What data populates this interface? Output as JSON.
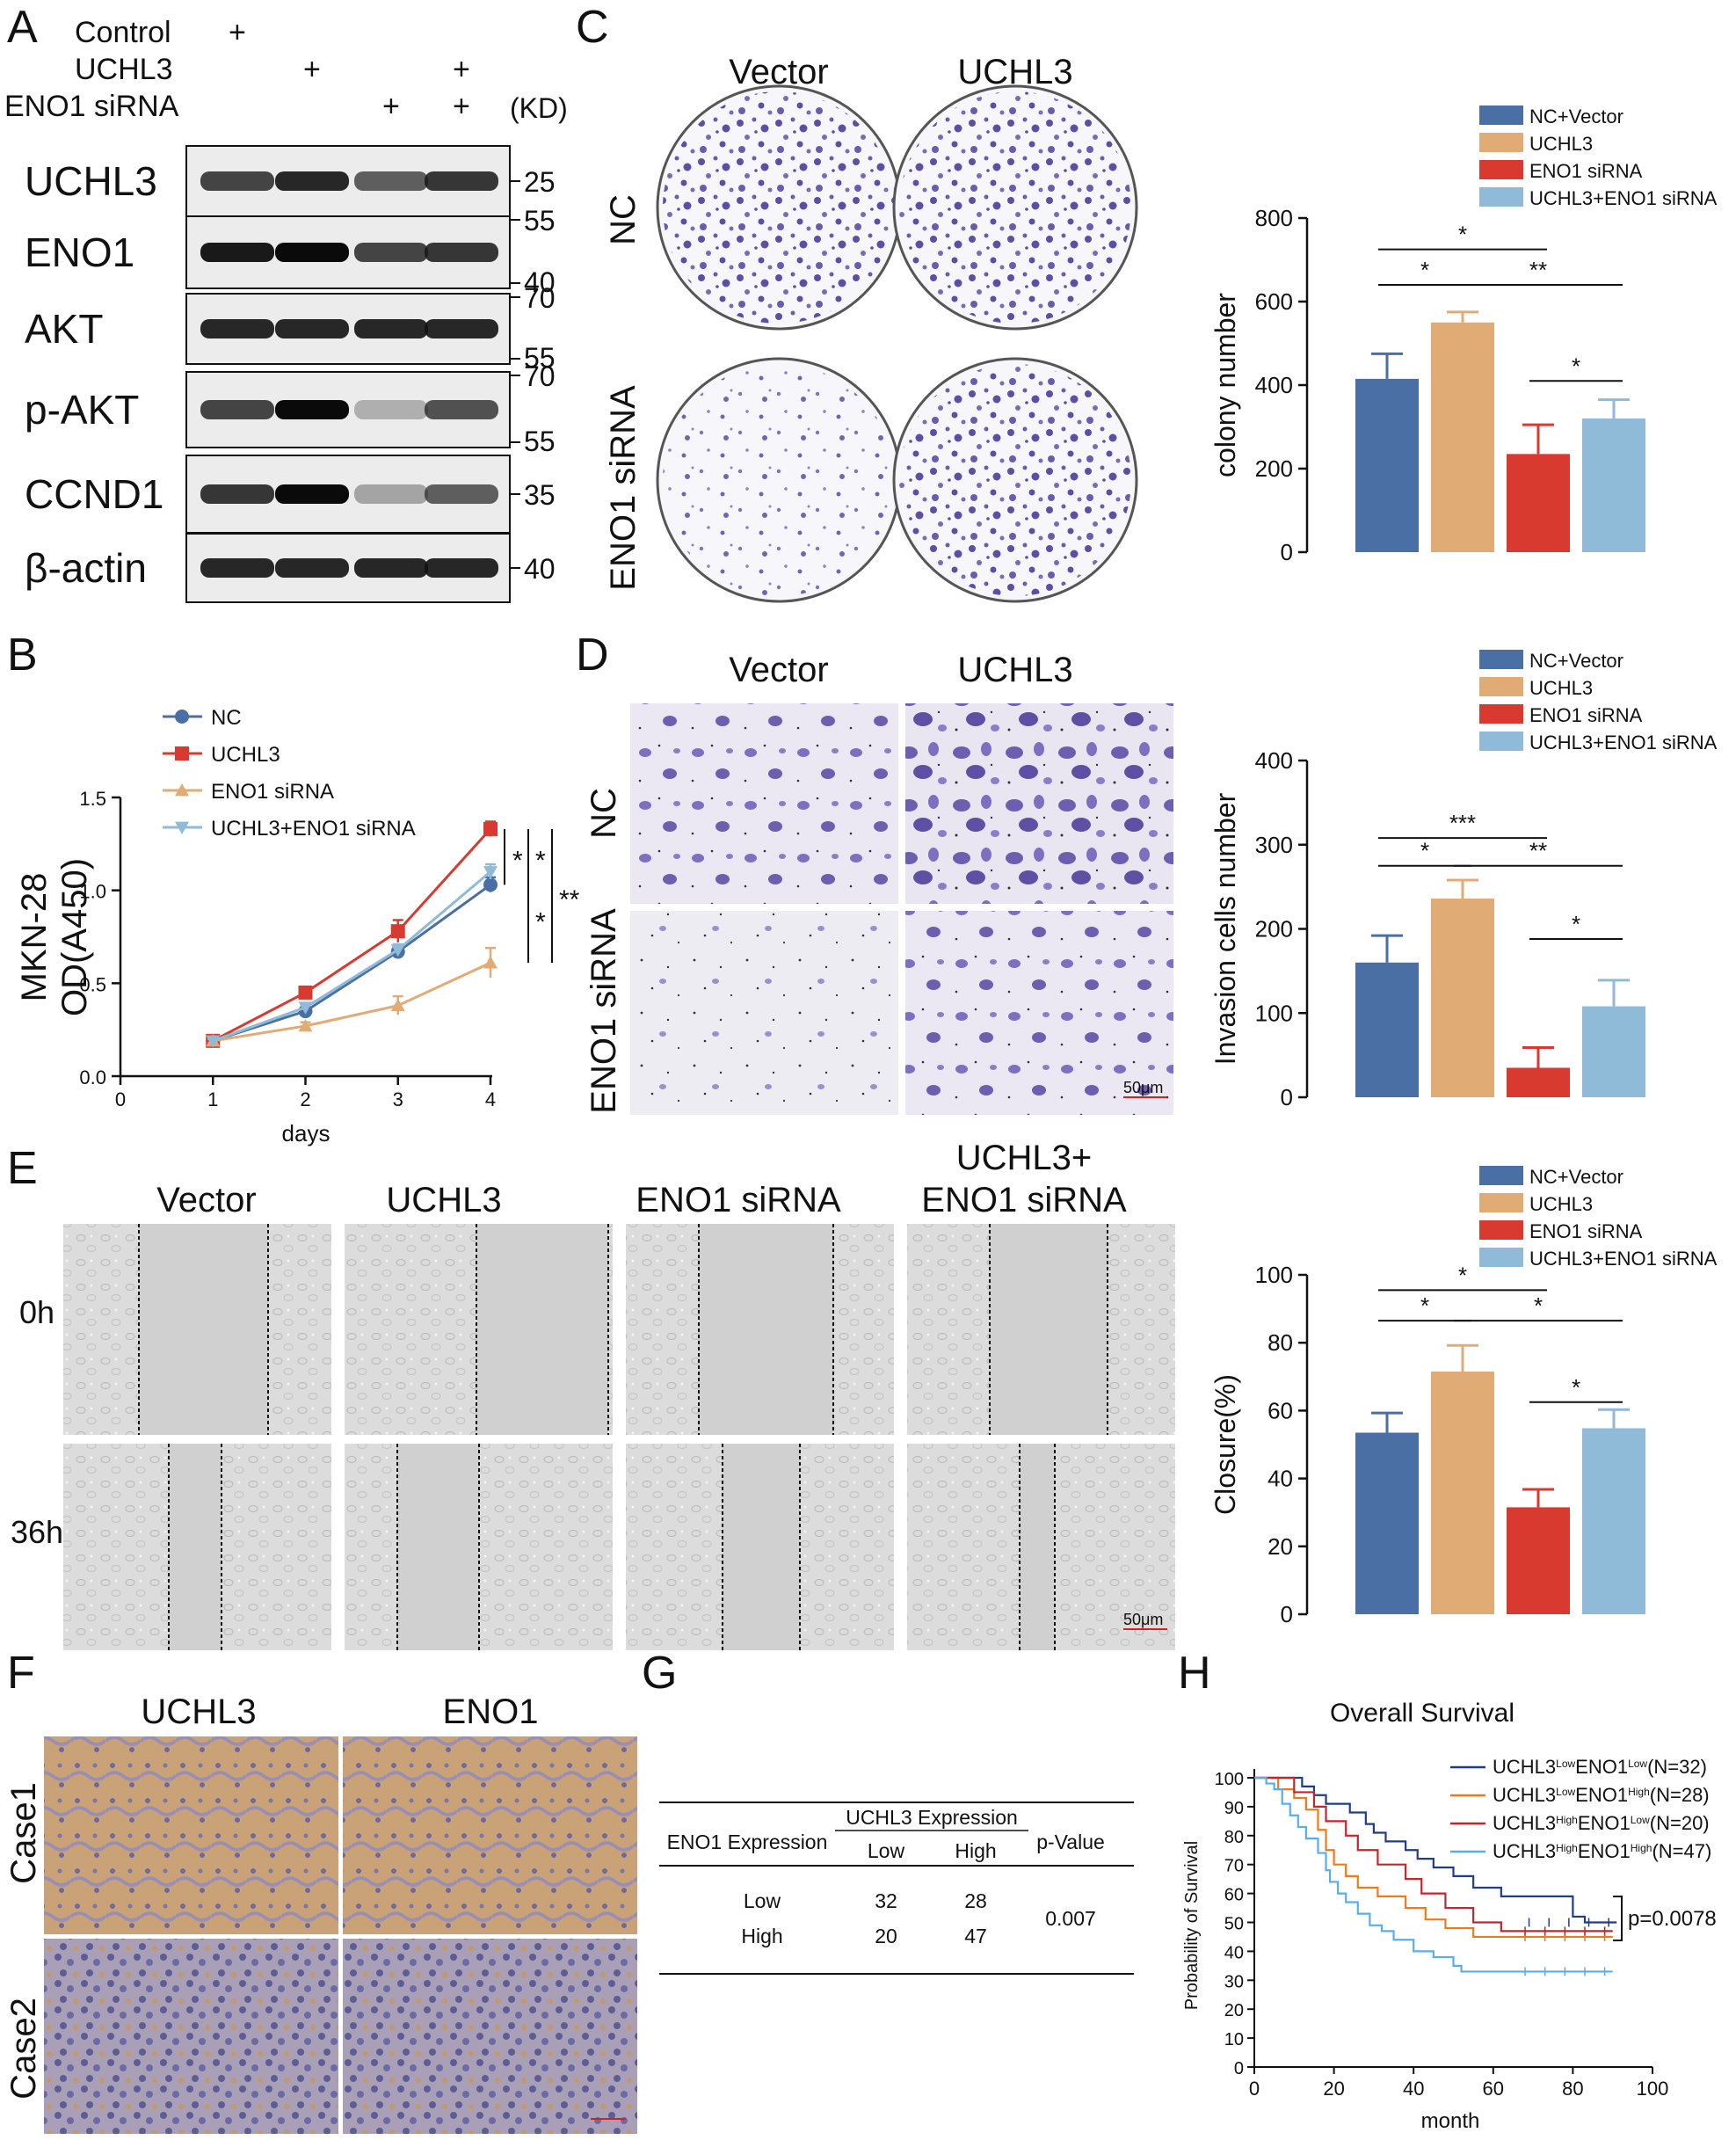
{
  "panels": {
    "a": "A",
    "b": "B",
    "c": "C",
    "d": "D",
    "e": "E",
    "f": "F",
    "g": "G",
    "h": "H"
  },
  "colors": {
    "nc_vector": "#4a6fa5",
    "uchl3": "#e0ab74",
    "eno1_sirna": "#d93a30",
    "uchl3_eno1": "#8fbad8",
    "crystal_violet": "#5a4aa8",
    "ihc_brown": "#b58a5a",
    "ihc_blue": "#7a86b5"
  },
  "blot": {
    "conditions": [
      {
        "label": "Control",
        "marks": [
          "+",
          "",
          "",
          ""
        ]
      },
      {
        "label": "UCHL3",
        "marks": [
          "",
          "+",
          "",
          "+"
        ]
      },
      {
        "label": "ENO1 siRNA",
        "marks": [
          "",
          "",
          "+",
          "+"
        ]
      }
    ],
    "kd_label": "(KD)",
    "rows": [
      {
        "name": "UCHL3",
        "markers": [
          "25"
        ],
        "intensity": [
          0.8,
          0.9,
          0.7,
          0.85
        ]
      },
      {
        "name": "ENO1",
        "markers": [
          "55",
          "40"
        ],
        "intensity": [
          0.95,
          1.0,
          0.8,
          0.85
        ]
      },
      {
        "name": "AKT",
        "markers": [
          "70",
          "55"
        ],
        "intensity": [
          0.9,
          0.9,
          0.9,
          0.9
        ]
      },
      {
        "name": "p-AKT",
        "markers": [
          "70",
          "55"
        ],
        "intensity": [
          0.8,
          1.0,
          0.35,
          0.75
        ]
      },
      {
        "name": "CCND1",
        "markers": [
          "35"
        ],
        "intensity": [
          0.85,
          1.0,
          0.4,
          0.7
        ]
      },
      {
        "name": "β-actin",
        "markers": [
          "40"
        ],
        "intensity": [
          0.9,
          0.9,
          0.9,
          0.9
        ]
      }
    ]
  },
  "panel_b": {
    "legend": [
      "NC",
      "UCHL3",
      "ENO1 siRNA",
      "UCHL3+ENO1 siRNA"
    ],
    "ylabel_line1": "MKN-28",
    "ylabel_line2": "OD(A450)",
    "xlabel": "days",
    "stars": [
      "*",
      "*",
      "*",
      "**"
    ]
  },
  "panel_c": {
    "col_labels": [
      "Vector",
      "UCHL3"
    ],
    "row_labels": [
      "NC",
      "ENO1 siRNA"
    ]
  },
  "panel_d": {
    "col_labels": [
      "Vector",
      "UCHL3"
    ],
    "row_labels": [
      "NC",
      "ENO1 siRNA"
    ],
    "scale": "50μm"
  },
  "panel_e": {
    "col_labels": [
      "Vector",
      "UCHL3",
      "ENO1 siRNA",
      "UCHL3+",
      "ENO1 siRNA"
    ],
    "row_labels": [
      "0h",
      "36h"
    ],
    "scale": "50μm"
  },
  "bar_legend": [
    "NC+Vector",
    "UCHL3",
    "ENO1 siRNA",
    "UCHL3+ENO1 siRNA"
  ],
  "panel_f": {
    "col_labels": [
      "UCHL3",
      "ENO1"
    ],
    "row_labels": [
      "Case1",
      "Case2"
    ]
  },
  "panel_g": {
    "col_header": "UCHL3 Expression",
    "row_header": "ENO1 Expression",
    "pvalue_header": "p-Value",
    "sub_headers": [
      "Low",
      "High"
    ],
    "rows": [
      {
        "label": "Low",
        "values": [
          "32",
          "28"
        ]
      },
      {
        "label": "High",
        "values": [
          "20",
          "47"
        ]
      }
    ],
    "pvalue": "0.007"
  },
  "panel_h": {
    "title": "Overall Survival",
    "ylabel": "Probability of Survival",
    "xlabel": "month",
    "pvalue": "p=0.0078",
    "legend": [
      {
        "a": "UCHL3",
        "as": "Low",
        "b": "ENO1",
        "bs": "Low",
        "n": "(N=32)"
      },
      {
        "a": "UCHL3",
        "as": "Low",
        "b": "ENO1",
        "bs": "High",
        "n": "(N=28)"
      },
      {
        "a": "UCHL3",
        "as": "High",
        "b": "ENO1",
        "bs": "Low",
        "n": "(N=20)"
      },
      {
        "a": "UCHL3",
        "as": "High",
        "b": "ENO1",
        "bs": "High",
        "n": "(N=47)"
      }
    ]
  },
  "chart_data": [
    {
      "id": "B",
      "type": "line",
      "xlabel": "days",
      "ylabel": "MKN-28 OD(A450)",
      "xlim": [
        0,
        4
      ],
      "ylim": [
        0,
        1.5
      ],
      "x_ticks": [
        "0",
        "1",
        "2",
        "3",
        "4"
      ],
      "y_ticks": [
        "0.0",
        "0.5",
        "1.0",
        "1.5"
      ],
      "x": [
        1,
        2,
        3,
        4
      ],
      "series": [
        {
          "name": "NC",
          "values": [
            0.19,
            0.35,
            0.67,
            1.03
          ],
          "err": [
            0.01,
            0.02,
            0.03,
            0.04
          ],
          "color": "#4a6fa5",
          "marker": "circle"
        },
        {
          "name": "UCHL3",
          "values": [
            0.19,
            0.45,
            0.78,
            1.33
          ],
          "err": [
            0.01,
            0.02,
            0.06,
            0.04
          ],
          "color": "#d93a30",
          "marker": "square"
        },
        {
          "name": "ENO1 siRNA",
          "values": [
            0.19,
            0.27,
            0.38,
            0.61
          ],
          "err": [
            0.01,
            0.02,
            0.05,
            0.08
          ],
          "color": "#e0ab74",
          "marker": "triangle"
        },
        {
          "name": "UCHL3+ENO1 siRNA",
          "values": [
            0.19,
            0.37,
            0.68,
            1.1
          ],
          "err": [
            0.01,
            0.02,
            0.03,
            0.04
          ],
          "color": "#8fbad8",
          "marker": "invtriangle"
        }
      ]
    },
    {
      "id": "C",
      "type": "bar",
      "ylabel": "colony number",
      "ylim": [
        0,
        800
      ],
      "y_ticks": [
        "0",
        "200",
        "400",
        "600",
        "800"
      ],
      "categories": [
        "NC+Vector",
        "UCHL3",
        "ENO1 siRNA",
        "UCHL3+ENO1 siRNA"
      ],
      "values": [
        415,
        550,
        235,
        320
      ],
      "err": [
        60,
        25,
        70,
        45
      ],
      "colors": [
        "#4a6fa5",
        "#e0ab74",
        "#d93a30",
        "#8fbad8"
      ],
      "significance": [
        {
          "from": 0,
          "to": 2,
          "label": "*",
          "y": 725
        },
        {
          "from": 0,
          "to": 1,
          "label": "*",
          "y": 640
        },
        {
          "from": 1,
          "to": 3,
          "label": "**",
          "y": 640
        },
        {
          "from": 2,
          "to": 3,
          "label": "*",
          "y": 410
        }
      ]
    },
    {
      "id": "D",
      "type": "bar",
      "ylabel": "Invasion cells number",
      "ylim": [
        0,
        400
      ],
      "y_ticks": [
        "0",
        "100",
        "200",
        "300",
        "400"
      ],
      "categories": [
        "NC+Vector",
        "UCHL3",
        "ENO1 siRNA",
        "UCHL3+ENO1 siRNA"
      ],
      "values": [
        160,
        236,
        35,
        108
      ],
      "err": [
        32,
        22,
        24,
        31
      ],
      "colors": [
        "#4a6fa5",
        "#e0ab74",
        "#d93a30",
        "#8fbad8"
      ],
      "significance": [
        {
          "from": 0,
          "to": 2,
          "label": "***",
          "y": 308
        },
        {
          "from": 0,
          "to": 1,
          "label": "*",
          "y": 275
        },
        {
          "from": 1,
          "to": 3,
          "label": "**",
          "y": 275
        },
        {
          "from": 2,
          "to": 3,
          "label": "*",
          "y": 188
        }
      ]
    },
    {
      "id": "E",
      "type": "bar",
      "ylabel": "Closure(%)",
      "ylim": [
        0,
        100
      ],
      "y_ticks": [
        "0",
        "20",
        "40",
        "60",
        "80",
        "100"
      ],
      "categories": [
        "NC+Vector",
        "UCHL3",
        "ENO1 siRNA",
        "UCHL3+ENO1 siRNA"
      ],
      "values": [
        53.5,
        71.5,
        31.5,
        54.8
      ],
      "err": [
        5.8,
        7.7,
        5.3,
        5.5
      ],
      "colors": [
        "#4a6fa5",
        "#e0ab74",
        "#d93a30",
        "#8fbad8"
      ],
      "significance": [
        {
          "from": 0,
          "to": 2,
          "label": "*",
          "y": 95.5
        },
        {
          "from": 0,
          "to": 1,
          "label": "*",
          "y": 86.5
        },
        {
          "from": 1,
          "to": 3,
          "label": "*",
          "y": 86.5
        },
        {
          "from": 2,
          "to": 3,
          "label": "*",
          "y": 62.5
        }
      ]
    },
    {
      "id": "H",
      "type": "line",
      "subtype": "kaplan-meier",
      "title": "Overall Survival",
      "xlabel": "month",
      "ylabel": "Probability of Survival",
      "xlim": [
        0,
        100
      ],
      "ylim": [
        0,
        100
      ],
      "x_ticks": [
        "0",
        "20",
        "40",
        "60",
        "80",
        "100"
      ],
      "y_ticks": [
        "0",
        "10",
        "20",
        "30",
        "40",
        "50",
        "60",
        "70",
        "80",
        "90",
        "100"
      ],
      "series": [
        {
          "name": "UCHL3 Low ENO1 Low (N=32)",
          "color": "#1f3d8a",
          "steps": [
            [
              0,
              100
            ],
            [
              12,
              97
            ],
            [
              15,
              94
            ],
            [
              18,
              91
            ],
            [
              24,
              88
            ],
            [
              28,
              84
            ],
            [
              30,
              81
            ],
            [
              33,
              78
            ],
            [
              38,
              75
            ],
            [
              41,
              72
            ],
            [
              45,
              69
            ],
            [
              50,
              66
            ],
            [
              55,
              62
            ],
            [
              62,
              59
            ],
            [
              80,
              52
            ],
            [
              83,
              50
            ],
            [
              91,
              50
            ]
          ]
        },
        {
          "name": "UCHL3 Low ENO1 High (N=28)",
          "color": "#f07a1a",
          "steps": [
            [
              0,
              100
            ],
            [
              6,
              96
            ],
            [
              10,
              93
            ],
            [
              13,
              89
            ],
            [
              16,
              82
            ],
            [
              18,
              75
            ],
            [
              20,
              70
            ],
            [
              23,
              66
            ],
            [
              26,
              62
            ],
            [
              31,
              59
            ],
            [
              38,
              55
            ],
            [
              43,
              51
            ],
            [
              48,
              48
            ],
            [
              55,
              45
            ],
            [
              90,
              45
            ]
          ]
        },
        {
          "name": "UCHL3 High ENO1 Low (N=20)",
          "color": "#c1272d",
          "steps": [
            [
              0,
              100
            ],
            [
              10,
              95
            ],
            [
              15,
              90
            ],
            [
              18,
              85
            ],
            [
              23,
              80
            ],
            [
              26,
              75
            ],
            [
              31,
              70
            ],
            [
              38,
              65
            ],
            [
              42,
              60
            ],
            [
              48,
              55
            ],
            [
              55,
              50
            ],
            [
              62,
              47
            ],
            [
              90,
              47
            ]
          ]
        },
        {
          "name": "UCHL3 High ENO1 High (N=47)",
          "color": "#5aaee8",
          "steps": [
            [
              0,
              100
            ],
            [
              3,
              98
            ],
            [
              5,
              96
            ],
            [
              7,
              91
            ],
            [
              9,
              87
            ],
            [
              11,
              83
            ],
            [
              13,
              79
            ],
            [
              16,
              74
            ],
            [
              18,
              68
            ],
            [
              19,
              64
            ],
            [
              21,
              60
            ],
            [
              23,
              57
            ],
            [
              26,
              53
            ],
            [
              29,
              49
            ],
            [
              32,
              47
            ],
            [
              35,
              44
            ],
            [
              40,
              40
            ],
            [
              45,
              38
            ],
            [
              50,
              35
            ],
            [
              52,
              33
            ],
            [
              90,
              33
            ]
          ]
        }
      ]
    }
  ]
}
